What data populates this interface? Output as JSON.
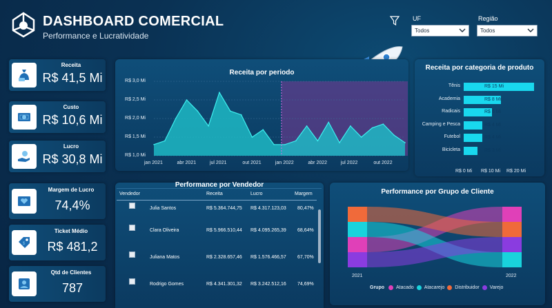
{
  "header": {
    "title": "DASHBOARD COMERCIAL",
    "subtitle": "Performance e Lucratividade"
  },
  "filters": {
    "uf": {
      "label": "UF",
      "value": "Todos"
    },
    "regiao": {
      "label": "Região",
      "value": "Todos"
    }
  },
  "kpis": [
    {
      "label": "Receita",
      "value": "R$ 41,5 Mi",
      "icon": "money-bag-icon"
    },
    {
      "label": "Custo",
      "value": "R$ 10,6 Mi",
      "icon": "cash-icon"
    },
    {
      "label": "Lucro",
      "value": "R$ 30,8 Mi",
      "icon": "hand-coin-icon"
    },
    {
      "label": "Margem de Lucro",
      "value": "74,4%",
      "icon": "heart-chart-icon"
    },
    {
      "label": "Ticket Médio",
      "value": "R$ 481,2",
      "icon": "price-tag-icon"
    },
    {
      "label": "Qtd de Clientes",
      "value": "787",
      "icon": "user-badge-icon"
    }
  ],
  "receita_periodo": {
    "title": "Receita por periodo",
    "y_ticks": [
      "R$ 3,0 Mi",
      "R$ 2,5 Mi",
      "R$ 2,0 Mi",
      "R$ 1,5 Mi",
      "R$ 1,0 Mi"
    ],
    "x_ticks": [
      "jan 2021",
      "abr 2021",
      "jul 2021",
      "out 2021",
      "jan 2022",
      "abr 2022",
      "jul 2022",
      "out 2022"
    ]
  },
  "categoria": {
    "title": "Receita por categoria de produto",
    "x_ticks": [
      "R$ 0 Mi",
      "R$ 10 Mi",
      "R$ 20 Mi"
    ]
  },
  "vendedor": {
    "title": "Performance por Vendedor",
    "columns": [
      "Vendedor",
      "Receita",
      "Lucro",
      "Margem"
    ],
    "rows": [
      {
        "nome": "Julia Santos",
        "receita": "R$ 5.364.744,75",
        "lucro": "R$ 4.317.123,03",
        "margem": "80,47%"
      },
      {
        "nome": "Clara Oliveira",
        "receita": "R$ 5.966.510,44",
        "lucro": "R$ 4.095.265,39",
        "margem": "68,64%"
      },
      {
        "nome": "Juliana Matos",
        "receita": "R$ 2.328.657,46",
        "lucro": "R$ 1.576.466,57",
        "margem": "67,70%"
      },
      {
        "nome": "Rodrigo Gomes",
        "receita": "R$ 4.341.301,32",
        "lucro": "R$ 3.242.512,16",
        "margem": "74,69%"
      }
    ]
  },
  "grupo": {
    "title": "Performance por Grupo de Cliente",
    "year_start": "2021",
    "year_end": "2022",
    "legend_title": "Grupo",
    "legend": [
      {
        "name": "Atacado",
        "color": "#e040b8"
      },
      {
        "name": "Atacarejo",
        "color": "#19d3dc"
      },
      {
        "name": "Distribuidor",
        "color": "#f06a3a"
      },
      {
        "name": "Varejo",
        "color": "#8a3ce0"
      }
    ]
  },
  "chart_data": [
    {
      "type": "area",
      "title": "Receita por periodo",
      "xlabel": "",
      "ylabel": "",
      "ylim": [
        1.0,
        3.0
      ],
      "y_unit": "R$ Mi",
      "x": [
        "jan 2021",
        "fev 2021",
        "mar 2021",
        "abr 2021",
        "mai 2021",
        "jun 2021",
        "jul 2021",
        "ago 2021",
        "set 2021",
        "out 2021",
        "nov 2021",
        "dez 2021",
        "jan 2022",
        "fev 2022",
        "mar 2022",
        "abr 2022",
        "mai 2022",
        "jun 2022",
        "jul 2022",
        "ago 2022",
        "set 2022",
        "out 2022",
        "nov 2022",
        "dez 2022"
      ],
      "series": [
        {
          "values": [
            1.3,
            1.4,
            2.0,
            2.5,
            2.2,
            1.8,
            2.7,
            2.2,
            2.1,
            1.5,
            1.7,
            1.3,
            1.3,
            1.4,
            1.8,
            1.4,
            1.9,
            1.35,
            1.8,
            1.5,
            1.75,
            1.85,
            1.55,
            1.35
          ]
        }
      ],
      "highlight_from": "jan 2022"
    },
    {
      "type": "bar",
      "orientation": "horizontal",
      "title": "Receita por categoria de produto",
      "categories": [
        "Tênis",
        "Academia",
        "Radicais",
        "Camping e Pesca",
        "Futebol",
        "Bicicleta"
      ],
      "values": [
        15,
        8,
        6,
        4,
        4,
        3
      ],
      "labels": [
        "R$ 15 Mi",
        "R$ 8 Mi",
        "R$ 6 Mi",
        "R$ 4 Mi",
        "R$ 4 Mi",
        "R$ 3 Mi"
      ],
      "xlim": [
        0,
        20
      ],
      "x_unit": "R$ Mi"
    },
    {
      "type": "ribbon",
      "title": "Performance por Grupo de Cliente",
      "categories": [
        "2021",
        "2022"
      ],
      "series": [
        {
          "name": "Atacado",
          "rank": [
            3,
            1
          ]
        },
        {
          "name": "Atacarejo",
          "rank": [
            2,
            4
          ]
        },
        {
          "name": "Distribuidor",
          "rank": [
            1,
            2
          ]
        },
        {
          "name": "Varejo",
          "rank": [
            4,
            3
          ]
        }
      ]
    }
  ]
}
